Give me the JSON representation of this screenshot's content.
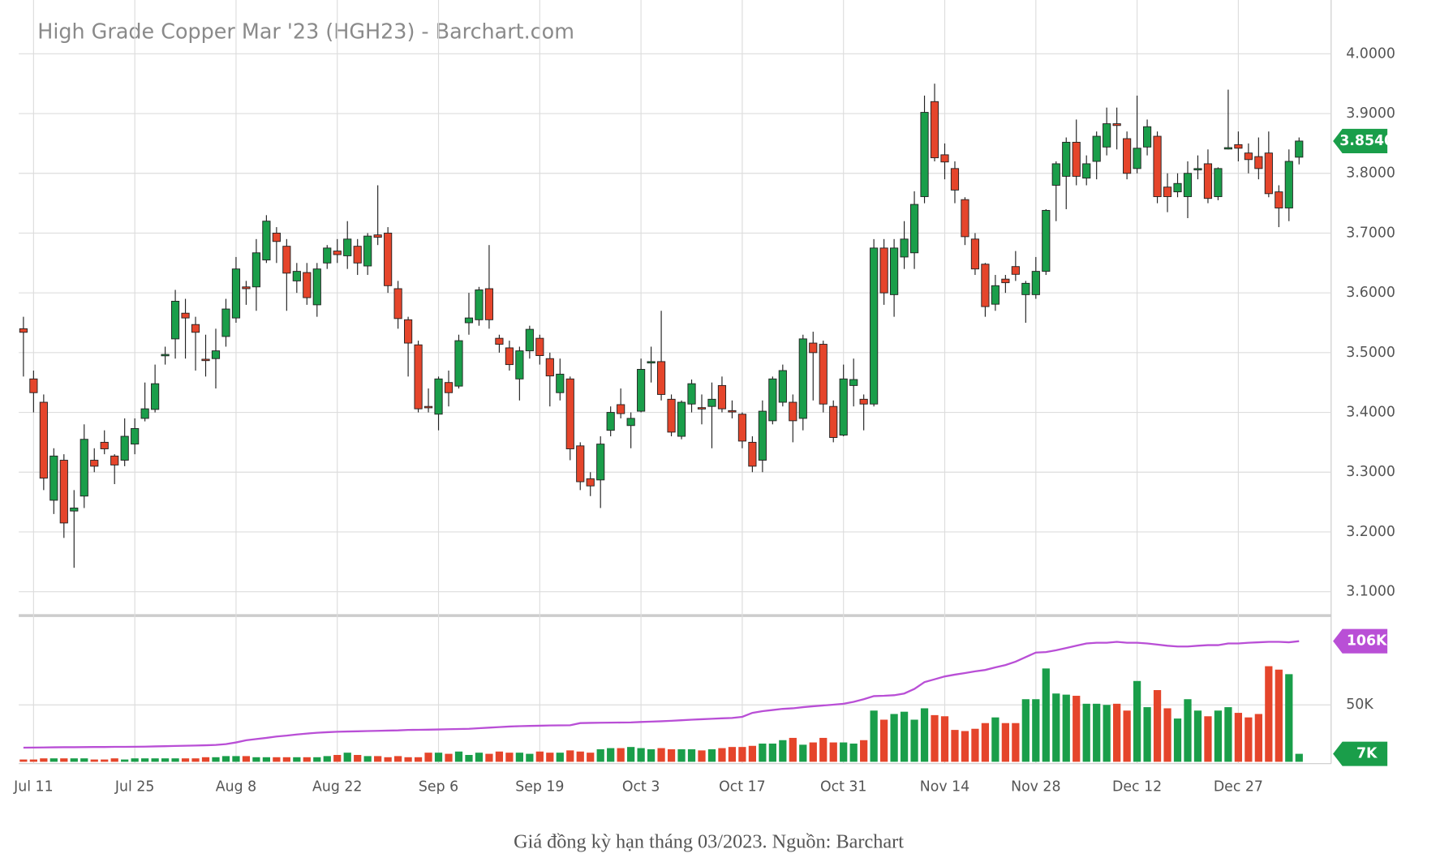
{
  "chart_data": {
    "type": "candlestick",
    "title": "High Grade Copper Mar '23 (HGH23) - Barchart.com",
    "caption": "Giá đồng kỳ hạn tháng 03/2023. Nguồn: Barchart",
    "up_color": "#1a9e4a",
    "down_color": "#e5452b",
    "grid": true,
    "categories": [
      null,
      "Jul 11",
      null,
      null,
      null,
      null,
      null,
      null,
      null,
      null,
      null,
      "Jul 25",
      null,
      null,
      null,
      null,
      null,
      null,
      null,
      null,
      null,
      "Aug 8",
      null,
      null,
      null,
      null,
      null,
      null,
      null,
      null,
      null,
      "Aug 22",
      null,
      null,
      null,
      null,
      null,
      null,
      null,
      null,
      null,
      "Sep 6",
      null,
      null,
      null,
      null,
      null,
      null,
      null,
      null,
      null,
      "Sep 19",
      null,
      null,
      null,
      null,
      null,
      null,
      null,
      null,
      null,
      "Oct 3",
      null,
      null,
      null,
      null,
      null,
      null,
      null,
      null,
      null,
      "Oct 17",
      null,
      null,
      null,
      null,
      null,
      null,
      null,
      null,
      null,
      "Oct 31",
      null,
      null,
      null,
      null,
      null,
      null,
      null,
      null,
      null,
      "Nov 14",
      null,
      null,
      null,
      null,
      null,
      null,
      null,
      null,
      "Nov 28",
      null,
      null,
      null,
      null,
      null,
      null,
      null,
      null,
      null,
      "Dec 12",
      null,
      null,
      null,
      null,
      null,
      null,
      null,
      null,
      null,
      "Dec 27",
      null,
      null,
      null,
      null,
      null,
      null
    ],
    "open": [
      3.54,
      3.456,
      3.417,
      3.253,
      3.32,
      3.235,
      3.26,
      3.32,
      3.35,
      3.327,
      3.32,
      3.347,
      3.39,
      3.405,
      3.495,
      3.523,
      3.566,
      3.547,
      3.489,
      3.49,
      3.527,
      3.558,
      3.61,
      3.61,
      3.655,
      3.7,
      3.678,
      3.62,
      3.634,
      3.58,
      3.65,
      3.67,
      3.662,
      3.678,
      3.645,
      3.697,
      3.7,
      3.607,
      3.555,
      3.513,
      3.41,
      3.397,
      3.45,
      3.444,
      3.55,
      3.555,
      3.607,
      3.524,
      3.508,
      3.456,
      3.503,
      3.524,
      3.49,
      3.433,
      3.456,
      3.344,
      3.289,
      3.287,
      3.37,
      3.413,
      3.378,
      3.402,
      3.483,
      3.485,
      3.422,
      3.36,
      3.414,
      3.408,
      3.41,
      3.445,
      3.403,
      3.397,
      3.35,
      3.32,
      3.386,
      3.417,
      3.417,
      3.39,
      3.516,
      3.514,
      3.41,
      3.362,
      3.445,
      3.422,
      3.414,
      3.675,
      3.597,
      3.66,
      3.667,
      3.761,
      3.92,
      3.831,
      3.808,
      3.756,
      3.69,
      3.648,
      3.581,
      3.623,
      3.644,
      3.597,
      3.597,
      3.636,
      3.78,
      3.795,
      3.852,
      3.792,
      3.82,
      3.844,
      3.883,
      3.858,
      3.808,
      3.844,
      3.862,
      3.777,
      3.769,
      3.761,
      3.807,
      3.816,
      3.761,
      3.842,
      3.848,
      3.834,
      3.828,
      3.834,
      3.769,
      3.742,
      3.827
    ],
    "high": [
      3.56,
      3.47,
      3.43,
      3.34,
      3.33,
      3.27,
      3.38,
      3.34,
      3.37,
      3.33,
      3.39,
      3.39,
      3.45,
      3.48,
      3.51,
      3.605,
      3.59,
      3.56,
      3.53,
      3.54,
      3.59,
      3.66,
      3.62,
      3.69,
      3.73,
      3.71,
      3.69,
      3.65,
      3.65,
      3.65,
      3.68,
      3.69,
      3.72,
      3.69,
      3.7,
      3.78,
      3.71,
      3.62,
      3.56,
      3.52,
      3.44,
      3.46,
      3.47,
      3.53,
      3.6,
      3.61,
      3.68,
      3.53,
      3.52,
      3.51,
      3.545,
      3.53,
      3.5,
      3.49,
      3.46,
      3.35,
      3.3,
      3.36,
      3.41,
      3.44,
      3.4,
      3.49,
      3.51,
      3.57,
      3.43,
      3.42,
      3.455,
      3.43,
      3.45,
      3.46,
      3.42,
      3.4,
      3.36,
      3.42,
      3.46,
      3.48,
      3.43,
      3.53,
      3.535,
      3.52,
      3.42,
      3.48,
      3.49,
      3.43,
      3.69,
      3.69,
      3.69,
      3.72,
      3.77,
      3.93,
      3.95,
      3.85,
      3.82,
      3.76,
      3.7,
      3.65,
      3.63,
      3.63,
      3.67,
      3.62,
      3.66,
      3.74,
      3.82,
      3.86,
      3.89,
      3.83,
      3.87,
      3.91,
      3.91,
      3.87,
      3.93,
      3.89,
      3.87,
      3.8,
      3.8,
      3.82,
      3.83,
      3.84,
      3.81,
      3.94,
      3.87,
      3.85,
      3.86,
      3.87,
      3.78,
      3.84,
      3.86
    ],
    "low": [
      3.46,
      3.4,
      3.27,
      3.23,
      3.19,
      3.14,
      3.24,
      3.3,
      3.33,
      3.28,
      3.31,
      3.33,
      3.385,
      3.4,
      3.48,
      3.49,
      3.49,
      3.47,
      3.46,
      3.44,
      3.51,
      3.55,
      3.58,
      3.57,
      3.65,
      3.65,
      3.57,
      3.6,
      3.58,
      3.56,
      3.64,
      3.65,
      3.64,
      3.63,
      3.63,
      3.68,
      3.6,
      3.54,
      3.46,
      3.4,
      3.4,
      3.37,
      3.41,
      3.44,
      3.53,
      3.545,
      3.54,
      3.5,
      3.47,
      3.42,
      3.49,
      3.48,
      3.41,
      3.42,
      3.32,
      3.27,
      3.26,
      3.24,
      3.36,
      3.39,
      3.34,
      3.4,
      3.45,
      3.42,
      3.36,
      3.355,
      3.4,
      3.38,
      3.34,
      3.4,
      3.39,
      3.34,
      3.3,
      3.3,
      3.38,
      3.41,
      3.35,
      3.37,
      3.42,
      3.4,
      3.35,
      3.36,
      3.41,
      3.37,
      3.41,
      3.58,
      3.56,
      3.64,
      3.64,
      3.75,
      3.82,
      3.79,
      3.75,
      3.68,
      3.63,
      3.56,
      3.57,
      3.6,
      3.62,
      3.55,
      3.59,
      3.63,
      3.72,
      3.74,
      3.78,
      3.78,
      3.79,
      3.83,
      3.84,
      3.79,
      3.8,
      3.83,
      3.75,
      3.735,
      3.76,
      3.725,
      3.79,
      3.75,
      3.755,
      3.84,
      3.82,
      3.8,
      3.79,
      3.76,
      3.71,
      3.72,
      3.815
    ],
    "close": [
      3.534,
      3.433,
      3.29,
      3.327,
      3.215,
      3.24,
      3.355,
      3.31,
      3.339,
      3.312,
      3.36,
      3.373,
      3.406,
      3.448,
      3.497,
      3.586,
      3.558,
      3.534,
      3.487,
      3.503,
      3.573,
      3.64,
      3.607,
      3.667,
      3.72,
      3.686,
      3.633,
      3.636,
      3.592,
      3.64,
      3.675,
      3.664,
      3.69,
      3.65,
      3.695,
      3.693,
      3.612,
      3.557,
      3.516,
      3.406,
      3.408,
      3.456,
      3.433,
      3.52,
      3.558,
      3.605,
      3.555,
      3.514,
      3.48,
      3.503,
      3.539,
      3.495,
      3.461,
      3.464,
      3.339,
      3.284,
      3.277,
      3.347,
      3.4,
      3.398,
      3.39,
      3.472,
      3.485,
      3.43,
      3.367,
      3.417,
      3.448,
      3.407,
      3.422,
      3.406,
      3.401,
      3.352,
      3.31,
      3.402,
      3.456,
      3.47,
      3.386,
      3.523,
      3.5,
      3.414,
      3.358,
      3.456,
      3.455,
      3.414,
      3.675,
      3.6,
      3.675,
      3.69,
      3.748,
      3.902,
      3.826,
      3.819,
      3.772,
      3.694,
      3.64,
      3.577,
      3.612,
      3.617,
      3.631,
      3.616,
      3.636,
      3.738,
      3.816,
      3.852,
      3.795,
      3.816,
      3.862,
      3.883,
      3.88,
      3.8,
      3.842,
      3.878,
      3.761,
      3.761,
      3.783,
      3.8,
      3.808,
      3.758,
      3.808,
      3.843,
      3.842,
      3.823,
      3.808,
      3.766,
      3.742,
      3.82,
      3.854
    ],
    "ylim": [
      3.06,
      4.09
    ],
    "yticks": [
      {
        "value": 3.1,
        "label": "3.1000"
      },
      {
        "value": 3.2,
        "label": "3.2000"
      },
      {
        "value": 3.3,
        "label": "3.3000"
      },
      {
        "value": 3.4,
        "label": "3.4000"
      },
      {
        "value": 3.5,
        "label": "3.5000"
      },
      {
        "value": 3.6,
        "label": "3.6000"
      },
      {
        "value": 3.7,
        "label": "3.7000"
      },
      {
        "value": 3.8,
        "label": "3.8000"
      },
      {
        "value": 3.9,
        "label": "3.9000"
      },
      {
        "value": 4.0,
        "label": "4.0000"
      }
    ],
    "last_price": {
      "value": 3.854,
      "label": "3.8540"
    },
    "volume": {
      "values": [
        2,
        2,
        3,
        3,
        3,
        3,
        3,
        2,
        2,
        3,
        2,
        3,
        3,
        3,
        3,
        3,
        3,
        3,
        4,
        4,
        5,
        5,
        5,
        4,
        4,
        4,
        4,
        4,
        4,
        4,
        5,
        6,
        8,
        6,
        5,
        5,
        4,
        5,
        4,
        4,
        8,
        8,
        7,
        9,
        6,
        8,
        7,
        9,
        8,
        8,
        7,
        9,
        8,
        8,
        10,
        9,
        8,
        11,
        12,
        12,
        13,
        12,
        11,
        12,
        11,
        11,
        11,
        10,
        11,
        12,
        13,
        13,
        14,
        16,
        16,
        19,
        21,
        15,
        17,
        21,
        17,
        17,
        16,
        19,
        45,
        37,
        42,
        44,
        37,
        47,
        41,
        40,
        28,
        27,
        29,
        34,
        39,
        34,
        34,
        55,
        55,
        82,
        60,
        59,
        58,
        51,
        51,
        50,
        51,
        45,
        71,
        48,
        63,
        47,
        38,
        55,
        45,
        40,
        45,
        48,
        43,
        39,
        42,
        84,
        81,
        77,
        7
      ],
      "ylim": [
        0,
        126
      ],
      "yticks": [
        {
          "value": 50,
          "label": "50K"
        }
      ],
      "badge": {
        "value": 7,
        "label": "7K"
      }
    },
    "moving_average": {
      "color": "#b94fd6",
      "values": [
        12.4,
        12.5,
        12.6,
        12.7,
        12.8,
        12.8,
        12.9,
        13,
        13,
        13.1,
        13.1,
        13.2,
        13.3,
        13.5,
        13.7,
        13.9,
        14.1,
        14.3,
        14.5,
        14.8,
        15.5,
        17,
        18.9,
        20,
        21,
        22.2,
        23,
        24,
        24.8,
        25.5,
        26,
        26.4,
        26.6,
        26.8,
        27,
        27.2,
        27.4,
        27.6,
        28,
        28.1,
        28.2,
        28.4,
        28.6,
        28.8,
        29,
        29.5,
        30,
        30.5,
        31,
        31.3,
        31.5,
        31.7,
        31.9,
        32,
        32.1,
        34,
        34.2,
        34.3,
        34.4,
        34.5,
        34.6,
        35,
        35.3,
        35.6,
        36,
        36.5,
        37,
        37.4,
        37.8,
        38.2,
        38.5,
        39.5,
        43,
        44.5,
        45.5,
        46.5,
        47,
        48,
        48.8,
        49.5,
        50.2,
        51,
        52.7,
        55,
        57.7,
        58,
        58.5,
        60,
        64,
        70,
        72.5,
        75,
        76.6,
        78,
        79.5,
        80.7,
        83,
        85,
        88,
        92,
        96,
        96.4,
        98,
        100,
        102,
        104,
        104.6,
        104.6,
        105.4,
        104.6,
        104.6,
        104,
        103,
        102,
        101.3,
        101.3,
        102,
        102.5,
        102.5,
        104,
        104,
        104.6,
        105,
        105.4,
        105.4,
        105,
        106
      ],
      "badge": {
        "value": 106,
        "label": "106K"
      }
    }
  }
}
